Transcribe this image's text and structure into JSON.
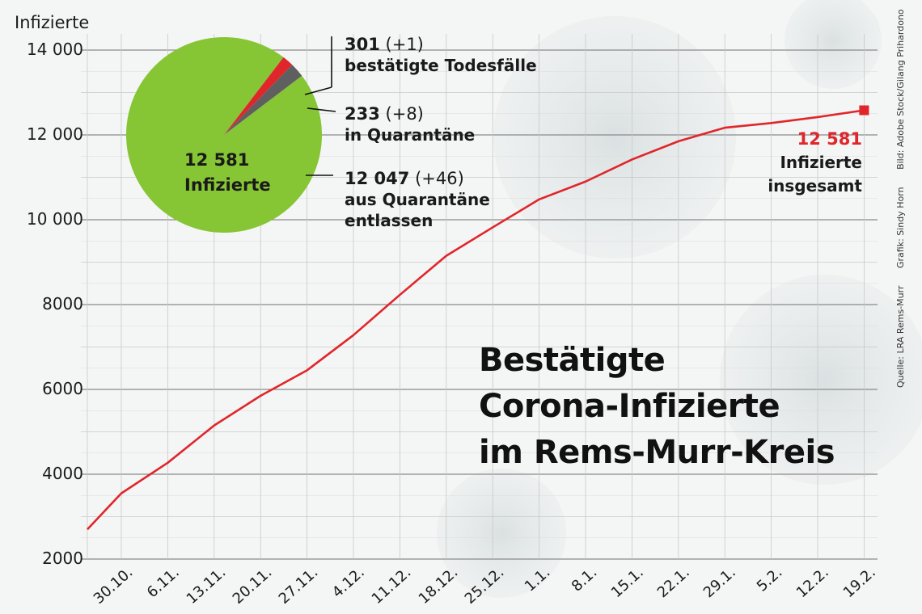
{
  "chart_data": {
    "type": "line",
    "title": "Bestätigte Corona-Infizierte im Rems-Murr-Kreis",
    "title_lines": [
      "Bestätigte",
      "Corona-Infizierte",
      "im Rems-Murr-Kreis"
    ],
    "ylabel": "Infizierte",
    "ylim": [
      2000,
      14000
    ],
    "yticks": [
      2000,
      4000,
      6000,
      8000,
      10000,
      12000,
      14000
    ],
    "ytick_labels": [
      "2000",
      "4000",
      "6000",
      "8000",
      "10 000",
      "12 000",
      "14 000"
    ],
    "grid": true,
    "x_tick_labels": [
      "30.10.",
      "6.11.",
      "13.11.",
      "20.11.",
      "27.11.",
      "4.12.",
      "11.12.",
      "18.12.",
      "25.12.",
      "1.1.",
      "8.1.",
      "15.1.",
      "22.1.",
      "29.1.",
      "5.2.",
      "12.2.",
      "19.2."
    ],
    "x": [
      "26.10.",
      "30.10.",
      "6.11.",
      "13.11.",
      "20.11.",
      "27.11.",
      "4.12.",
      "11.12.",
      "18.12.",
      "25.12.",
      "1.1.",
      "8.1.",
      "15.1.",
      "22.1.",
      "29.1.",
      "5.2.",
      "12.2.",
      "19.2."
    ],
    "series": [
      {
        "color": "#e0262b",
        "values": [
          2700,
          3550,
          4270,
          5150,
          5850,
          6450,
          7280,
          8230,
          9150,
          9820,
          10480,
          10900,
          11420,
          11850,
          12170,
          12280,
          12420,
          12581
        ]
      }
    ],
    "end_annotation": {
      "value": "12 581",
      "line1": "Infizierte",
      "line2": "insgesamt"
    },
    "pie": {
      "total_label": "12 581",
      "total_text": "Infizierte",
      "slices": [
        {
          "name": "aus Quarantäne entlassen",
          "value": 12047,
          "color": "#86c534"
        },
        {
          "name": "in Quarantäne",
          "value": 233,
          "color": "#e0262b"
        },
        {
          "name": "bestätigte Todesfälle",
          "value": 301,
          "color": "#5f5f5f"
        }
      ],
      "labels": [
        {
          "num": "301",
          "delta": "(+1)",
          "line1": "bestätigte Todesfälle"
        },
        {
          "num": "233",
          "delta": "(+8)",
          "line1": "in Quarantäne"
        },
        {
          "num": "12 047",
          "delta": "(+46)",
          "line1": "aus Quarantäne",
          "line2": "entlassen"
        }
      ]
    }
  },
  "credits": {
    "source": "Quelle: LRA Rems-Murr",
    "graphic": "Grafik: Sindy Horn",
    "image": "Bild: Adobe Stock/Gilang Prihardono"
  },
  "colors": {
    "line": "#e0262b",
    "pie_green": "#86c534",
    "pie_red": "#e0262b",
    "pie_gray": "#5f5f5f",
    "grid": "#bfbfbf"
  }
}
